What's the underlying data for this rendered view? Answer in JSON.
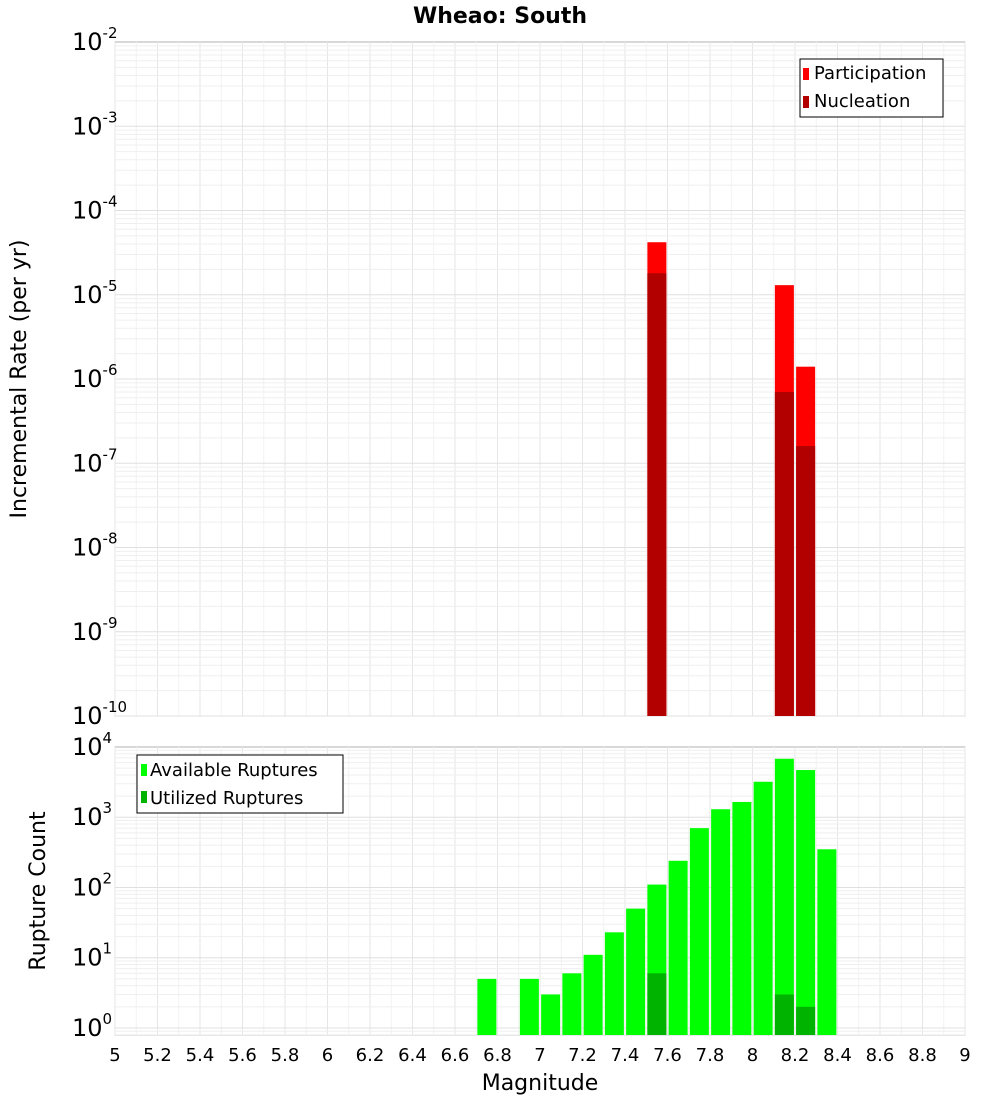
{
  "chart_data": [
    {
      "id": "rate",
      "type": "bar",
      "title": "Wheao: South",
      "ylabel": "Incremental Rate (per yr)",
      "xlim": [
        5,
        9
      ],
      "ylog_range": [
        -10,
        -2
      ],
      "ytick_exponents": [
        "-10",
        "-9",
        "-8",
        "-7",
        "-6",
        "-5",
        "-4",
        "-3",
        "-2"
      ],
      "legend": {
        "position": "top-right",
        "entries": [
          "Participation",
          "Nucleation"
        ]
      },
      "series": [
        {
          "name": "Participation",
          "color": "#ff0000",
          "points": [
            {
              "x": 7.55,
              "y": 4.2e-05
            },
            {
              "x": 8.15,
              "y": 1.3e-05
            },
            {
              "x": 8.25,
              "y": 1.4e-06
            }
          ]
        },
        {
          "name": "Nucleation",
          "color": "#b20000",
          "points": [
            {
              "x": 7.55,
              "y": 1.8e-05
            },
            {
              "x": 8.15,
              "y": 7e-07
            },
            {
              "x": 8.25,
              "y": 1.6e-07
            }
          ]
        }
      ]
    },
    {
      "id": "count",
      "type": "bar",
      "ylabel": "Rupture Count",
      "xlabel": "Magnitude",
      "xlim": [
        5,
        9
      ],
      "ylog_range": [
        -0.1,
        4
      ],
      "ytick_exponents": [
        "0",
        "1",
        "2",
        "3",
        "4"
      ],
      "xticks": [
        "5",
        "5.2",
        "5.4",
        "5.6",
        "5.8",
        "6",
        "6.2",
        "6.4",
        "6.6",
        "6.8",
        "7",
        "7.2",
        "7.4",
        "7.6",
        "7.8",
        "8",
        "8.2",
        "8.4",
        "8.6",
        "8.8",
        "9"
      ],
      "legend": {
        "position": "top-left",
        "entries": [
          "Available Ruptures",
          "Utilized Ruptures"
        ]
      },
      "series": [
        {
          "name": "Available Ruptures",
          "color": "#00ff00",
          "points": [
            {
              "x": 6.75,
              "y": 5
            },
            {
              "x": 6.95,
              "y": 5
            },
            {
              "x": 7.05,
              "y": 3
            },
            {
              "x": 7.15,
              "y": 6
            },
            {
              "x": 7.25,
              "y": 11
            },
            {
              "x": 7.35,
              "y": 23
            },
            {
              "x": 7.45,
              "y": 50
            },
            {
              "x": 7.55,
              "y": 110
            },
            {
              "x": 7.65,
              "y": 240
            },
            {
              "x": 7.75,
              "y": 700
            },
            {
              "x": 7.85,
              "y": 1300
            },
            {
              "x": 7.95,
              "y": 1650
            },
            {
              "x": 8.05,
              "y": 3200
            },
            {
              "x": 8.15,
              "y": 6800
            },
            {
              "x": 8.25,
              "y": 4700
            },
            {
              "x": 8.35,
              "y": 350
            }
          ]
        },
        {
          "name": "Utilized Ruptures",
          "color": "#00b300",
          "points": [
            {
              "x": 7.55,
              "y": 6
            },
            {
              "x": 8.15,
              "y": 3
            },
            {
              "x": 8.25,
              "y": 2
            }
          ]
        }
      ]
    }
  ]
}
